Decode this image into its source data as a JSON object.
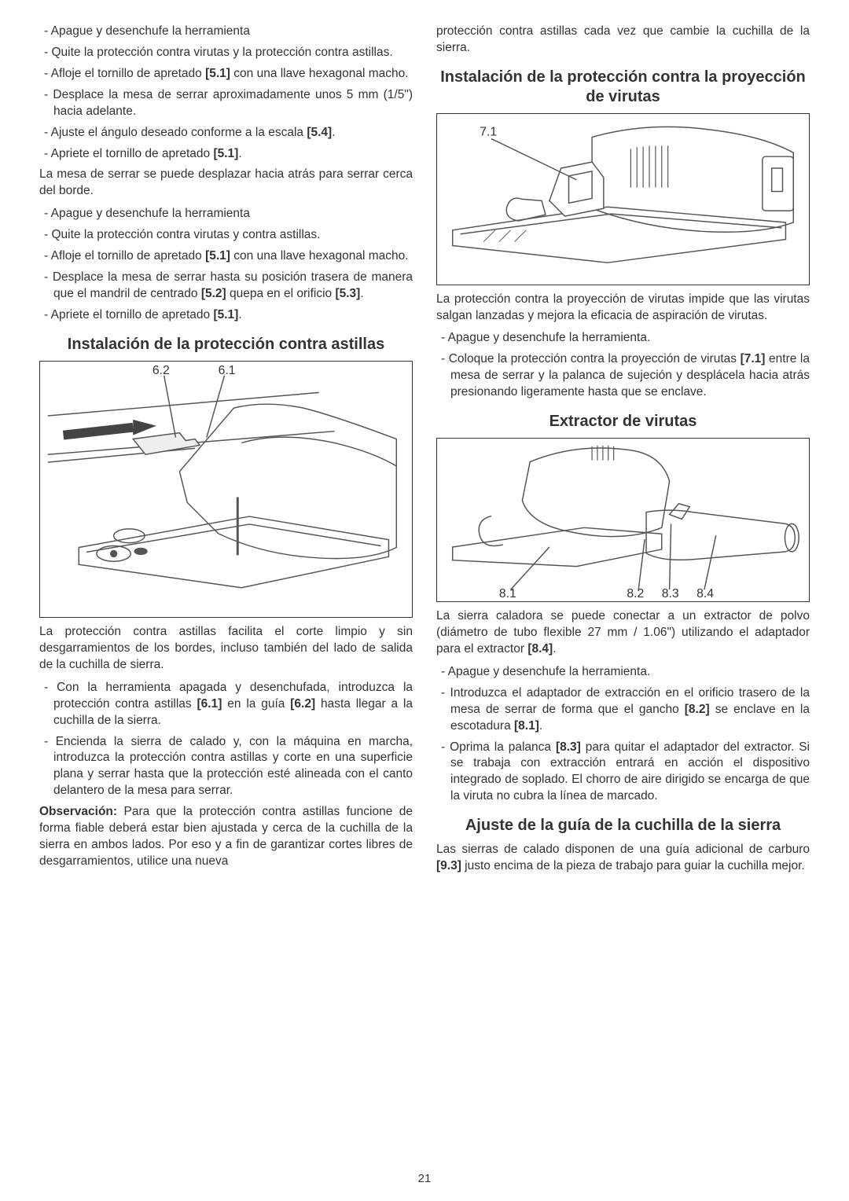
{
  "pageNumber": "21",
  "left": {
    "items": [
      "Apague y desenchufe la herramienta",
      "Quite la protección contra virutas y la protección contra astillas.",
      "Afloje el tornillo de apretado <b>[5.1]</b> con una llave hexagonal macho.",
      "Desplace la mesa de serrar aproximadamente unos 5 mm (1/5\") hacia adelante.",
      "Ajuste el ángulo deseado conforme a la escala <b>[5.4]</b>.",
      "Apriete el tornillo de apretado <b>[5.1]</b>."
    ],
    "para1": "La mesa de serrar se puede desplazar hacia atrás para serrar cerca del borde.",
    "items2": [
      "Apague y desenchufe la herramienta",
      "Quite la protección contra virutas y contra astillas.",
      "Afloje el tornillo de apretado <b>[5.1]</b> con una llave hexagonal macho.",
      "Desplace la mesa de serrar hasta su posición trasera de manera que el mandril de centrado <b>[5.2]</b> quepa en el orificio <b>[5.3]</b>.",
      "Apriete el tornillo de apretado <b>[5.1]</b>."
    ],
    "heading1": "Instalación de la protección contra astillas",
    "fig6_label_62": "6.2",
    "fig6_label_61": "6.1",
    "para2": "La protección contra astillas facilita el corte limpio y sin desgarramientos de los bordes, incluso también del lado de salida de la cuchilla de sierra.",
    "items3": [
      "Con la herramienta apagada y desenchufada, introduzca la protección contra astillas <b>[6.1]</b> en la guía <b>[6.2]</b> hasta llegar a la cuchilla de la sierra.",
      "Encienda la sierra de calado y, con la máquina en marcha, introduzca la protección contra astillas y corte en una superficie plana y serrar hasta que la protección esté alineada con el canto delantero de la mesa para serrar."
    ],
    "para3_label": "Observación:",
    "para3": " Para que la protección contra astillas funcione de forma fiable deberá estar bien ajustada y cerca de la cuchilla de la sierra en ambos lados. Por eso y a fin de garantizar cortes libres de desgarramientos, utilice una nueva"
  },
  "right": {
    "para0": "protección contra astillas cada vez que cambie la cuchilla de la sierra.",
    "heading1": "Instalación de la protección contra la proyección de virutas",
    "fig7_label": "7.1",
    "para1": "La protección contra la proyección de virutas impide que las virutas salgan lanzadas y mejora la eficacia de aspiración de virutas.",
    "items1": [
      "Apague y desenchufe la herramienta.",
      "Coloque la protección contra la proyección de virutas <b>[7.1]</b> entre la mesa de serrar y la palanca de sujeción y desplácela hacia atrás presionando ligeramente hasta que se enclave."
    ],
    "heading2": "Extractor de virutas",
    "fig8_labels": {
      "l81": "8.1",
      "l82": "8.2",
      "l83": "8.3",
      "l84": "8.4"
    },
    "para2": "La sierra caladora se puede conectar a un extractor de polvo (diámetro de tubo flexible 27 mm / 1.06\") utilizando el adaptador para el extractor <b>[8.4]</b>.",
    "items2": [
      "Apague y desenchufe la herramienta.",
      "Introduzca el adaptador de extracción en el orificio trasero de la mesa de serrar de forma que el gancho <b>[8.2]</b> se enclave en la escotadura <b>[8.1]</b>.",
      "Oprima la palanca <b>[8.3]</b> para quitar el adaptador del extractor. Si se trabaja con extracción entrará en acción el dispositivo integrado de soplado. El chorro de aire dirigido se encarga de que la viruta no cubra la línea de marcado."
    ],
    "heading3": "Ajuste de la guía de la cuchilla de la sierra",
    "para3": "Las sierras de calado disponen de una guía adicional de carburo <b>[9.3]</b> justo encima de la pieza de trabajo para guiar la cuchilla mejor."
  },
  "style": {
    "body_fontsize": 15.5,
    "heading_fontsize": 20,
    "line_stroke": "#555555",
    "line_width": 1.5,
    "figure_border": "#333333",
    "text_color": "#333333"
  }
}
